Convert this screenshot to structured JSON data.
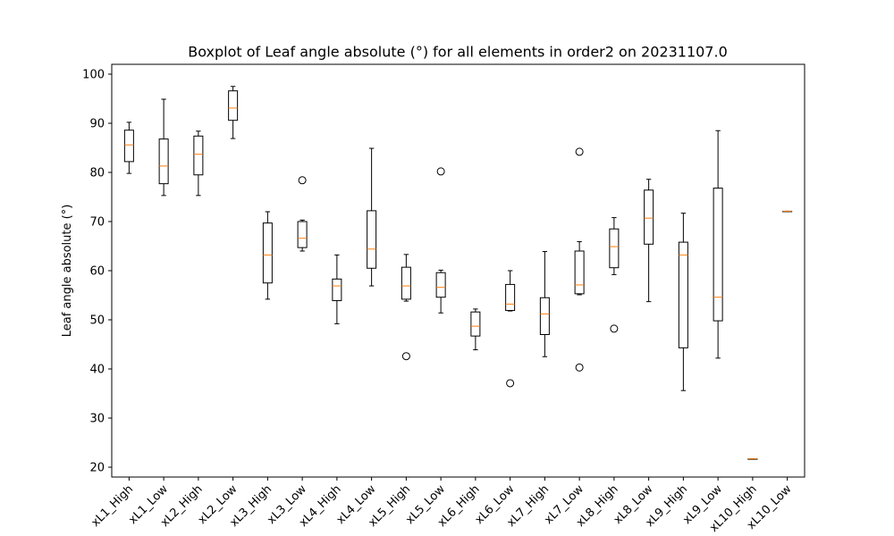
{
  "chart_data": {
    "type": "boxplot",
    "title": "Boxplot of Leaf angle absolute (°) for all elements in order2 on 20231107.0",
    "xlabel": "",
    "ylabel": "Leaf angle absolute (°)",
    "ylim": [
      18,
      102
    ],
    "yticks": [
      20,
      30,
      40,
      50,
      60,
      70,
      80,
      90,
      100
    ],
    "colors": {
      "box": "#000000",
      "median": "#ff7f0e",
      "background": "#ffffff"
    },
    "categories": [
      "xL1_High",
      "xL1_Low",
      "xL2_High",
      "xL2_Low",
      "xL3_High",
      "xL3_Low",
      "xL4_High",
      "xL4_Low",
      "xL5_High",
      "xL5_Low",
      "xL6_High",
      "xL6_Low",
      "xL7_High",
      "xL7_Low",
      "xL8_High",
      "xL8_Low",
      "xL9_High",
      "xL9_Low",
      "xL10_High",
      "xL10_Low"
    ],
    "boxes": [
      {
        "whislo": 79.8,
        "q1": 82.2,
        "med": 85.6,
        "q3": 88.6,
        "whishi": 90.2,
        "fliers": []
      },
      {
        "whislo": 75.3,
        "q1": 77.7,
        "med": 81.3,
        "q3": 86.8,
        "whishi": 94.9,
        "fliers": []
      },
      {
        "whislo": 75.3,
        "q1": 79.5,
        "med": 83.7,
        "q3": 87.4,
        "whishi": 88.4,
        "fliers": []
      },
      {
        "whislo": 86.9,
        "q1": 90.6,
        "med": 93.1,
        "q3": 96.6,
        "whishi": 97.5,
        "fliers": []
      },
      {
        "whislo": 54.2,
        "q1": 57.5,
        "med": 63.2,
        "q3": 69.7,
        "whishi": 72.0,
        "fliers": []
      },
      {
        "whislo": 64.0,
        "q1": 64.7,
        "med": 66.6,
        "q3": 70.0,
        "whishi": 70.3,
        "fliers": [
          78.4
        ]
      },
      {
        "whislo": 49.2,
        "q1": 53.9,
        "med": 56.9,
        "q3": 58.3,
        "whishi": 63.2,
        "fliers": []
      },
      {
        "whislo": 56.9,
        "q1": 60.5,
        "med": 64.4,
        "q3": 72.2,
        "whishi": 84.9,
        "fliers": []
      },
      {
        "whislo": 53.8,
        "q1": 54.2,
        "med": 56.9,
        "q3": 60.7,
        "whishi": 63.3,
        "fliers": [
          42.6
        ]
      },
      {
        "whislo": 51.4,
        "q1": 54.6,
        "med": 56.6,
        "q3": 59.6,
        "whishi": 60.1,
        "fliers": [
          80.2
        ]
      },
      {
        "whislo": 43.9,
        "q1": 46.7,
        "med": 48.7,
        "q3": 51.6,
        "whishi": 52.2,
        "fliers": []
      },
      {
        "whislo": 51.8,
        "q1": 51.9,
        "med": 53.2,
        "q3": 57.2,
        "whishi": 60.0,
        "fliers": [
          37.1
        ]
      },
      {
        "whislo": 42.5,
        "q1": 47.0,
        "med": 51.2,
        "q3": 54.5,
        "whishi": 63.9,
        "fliers": []
      },
      {
        "whislo": 55.1,
        "q1": 55.3,
        "med": 57.1,
        "q3": 64.0,
        "whishi": 65.9,
        "fliers": [
          84.2,
          40.3
        ]
      },
      {
        "whislo": 59.2,
        "q1": 60.6,
        "med": 64.9,
        "q3": 68.5,
        "whishi": 70.8,
        "fliers": [
          48.2
        ]
      },
      {
        "whislo": 53.7,
        "q1": 65.4,
        "med": 70.7,
        "q3": 76.4,
        "whishi": 78.6,
        "fliers": []
      },
      {
        "whislo": 35.6,
        "q1": 44.3,
        "med": 63.2,
        "q3": 65.8,
        "whishi": 71.7,
        "fliers": []
      },
      {
        "whislo": 42.2,
        "q1": 49.8,
        "med": 54.6,
        "q3": 76.8,
        "whishi": 88.5,
        "fliers": []
      },
      {
        "whislo": 21.7,
        "q1": 21.7,
        "med": 21.7,
        "q3": 21.7,
        "whishi": 21.7,
        "fliers": []
      },
      {
        "whislo": 72.1,
        "q1": 72.1,
        "med": 72.1,
        "q3": 72.1,
        "whishi": 72.1,
        "fliers": []
      }
    ]
  }
}
